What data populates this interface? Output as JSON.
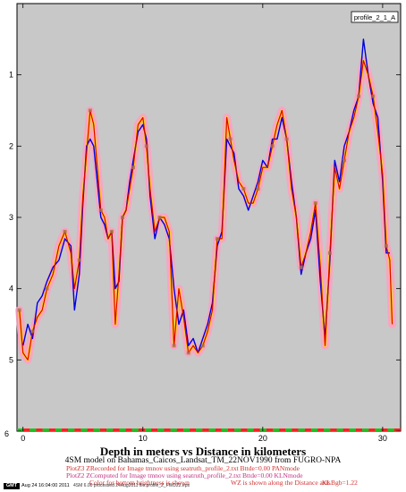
{
  "chart_data": {
    "type": "line",
    "legend_label": "profile_2_1_A",
    "x": {
      "range": [
        -0.5,
        31.5
      ],
      "ticks": [
        0,
        10,
        20,
        30
      ]
    },
    "y": {
      "range": [
        0,
        6
      ],
      "inverted": true,
      "ticks": [
        1,
        2,
        3,
        4,
        5,
        6
      ]
    },
    "grid": false,
    "background_color": "#c8c8c8",
    "series": [
      {
        "role": "recorded",
        "color": "#e00000",
        "halo_color": "#ff9fc3",
        "x": [
          -0.3,
          0,
          0.4,
          0.8,
          1.2,
          1.6,
          2,
          2.5,
          3,
          3.5,
          4,
          4.3,
          4.7,
          5,
          5.3,
          5.6,
          5.9,
          6.2,
          6.5,
          6.8,
          7.1,
          7.4,
          7.7,
          8,
          8.3,
          8.6,
          8.9,
          9.2,
          9.6,
          10,
          10.3,
          10.6,
          11,
          11.4,
          11.8,
          12.2,
          12.6,
          13,
          13.4,
          13.8,
          14.2,
          14.6,
          15,
          15.4,
          15.8,
          16.2,
          16.6,
          17,
          17.3,
          17.6,
          18,
          18.4,
          18.8,
          19.2,
          19.6,
          20,
          20.4,
          20.8,
          21.2,
          21.6,
          22,
          22.4,
          22.8,
          23.2,
          23.6,
          24,
          24.4,
          24.8,
          25.2,
          25.6,
          26,
          26.4,
          26.8,
          27.2,
          27.6,
          28,
          28.4,
          28.8,
          29.2,
          29.6,
          30,
          30.3,
          30.6,
          30.8
        ],
        "y": [
          4.3,
          4.9,
          5.0,
          4.6,
          4.4,
          4.3,
          4.0,
          3.8,
          3.4,
          3.2,
          3.5,
          4.0,
          3.6,
          2.7,
          2.1,
          1.5,
          1.7,
          2.3,
          2.9,
          3.0,
          3.3,
          3.2,
          4.5,
          3.8,
          3.0,
          2.9,
          2.6,
          2.3,
          1.7,
          1.6,
          2.0,
          2.6,
          3.2,
          3.0,
          3.0,
          3.2,
          4.8,
          4.0,
          4.4,
          4.9,
          4.8,
          4.9,
          4.8,
          4.6,
          4.3,
          3.3,
          3.3,
          1.6,
          1.9,
          2.2,
          2.5,
          2.6,
          2.8,
          2.8,
          2.6,
          2.3,
          2.3,
          2.0,
          1.7,
          1.5,
          1.9,
          2.6,
          3.0,
          3.7,
          3.5,
          3.2,
          2.8,
          3.7,
          4.8,
          3.5,
          2.3,
          2.6,
          2.2,
          1.8,
          1.6,
          1.3,
          0.8,
          1.0,
          1.3,
          1.8,
          2.4,
          3.4,
          3.6,
          4.5
        ],
        "fill_color": "#f7d21a",
        "marker_color": "#a6704a"
      },
      {
        "role": "computed",
        "color": "#0000e0",
        "x": [
          0,
          0.4,
          0.8,
          1.2,
          1.6,
          2,
          2.5,
          3,
          3.5,
          4,
          4.3,
          4.7,
          5,
          5.3,
          5.6,
          5.9,
          6.2,
          6.5,
          6.8,
          7.1,
          7.4,
          7.7,
          8,
          8.3,
          8.6,
          8.9,
          9.2,
          9.6,
          10,
          10.3,
          10.6,
          11,
          11.4,
          11.8,
          12.2,
          12.6,
          13,
          13.4,
          13.8,
          14.2,
          14.6,
          15,
          15.4,
          15.8,
          16.2,
          16.6,
          17,
          17.3,
          17.6,
          18,
          18.4,
          18.8,
          19.2,
          19.6,
          20,
          20.4,
          20.8,
          21.2,
          21.6,
          22,
          22.4,
          22.8,
          23.2,
          23.6,
          24,
          24.4,
          24.8,
          25.2,
          25.6,
          26,
          26.4,
          26.8,
          27.2,
          27.6,
          28,
          28.4,
          28.8,
          29.2,
          29.6,
          30,
          30.3,
          30.6
        ],
        "y": [
          4.8,
          4.5,
          4.7,
          4.2,
          4.1,
          3.9,
          3.7,
          3.6,
          3.3,
          3.4,
          4.3,
          3.8,
          2.8,
          2.0,
          1.9,
          2.0,
          2.5,
          3.0,
          3.1,
          3.3,
          3.2,
          4.0,
          3.9,
          3.0,
          2.9,
          2.5,
          2.2,
          1.8,
          1.7,
          1.9,
          2.7,
          3.3,
          3.0,
          3.1,
          3.3,
          4.0,
          4.5,
          4.3,
          4.8,
          4.7,
          4.9,
          4.7,
          4.5,
          4.2,
          3.4,
          3.2,
          1.9,
          2.0,
          2.1,
          2.6,
          2.7,
          2.9,
          2.7,
          2.5,
          2.2,
          2.3,
          1.9,
          1.9,
          1.6,
          1.9,
          2.5,
          3.0,
          3.8,
          3.5,
          3.3,
          2.9,
          3.9,
          4.7,
          3.6,
          2.2,
          2.5,
          2.0,
          1.8,
          1.5,
          1.3,
          0.5,
          1.0,
          1.4,
          1.6,
          2.5,
          3.5,
          3.5
        ]
      }
    ],
    "bottom_strip": {
      "y": 6,
      "colors": [
        "#20c020",
        "#ff2020"
      ]
    },
    "corner_label": "6",
    "xlabel": "Depth in meters vs Distance in kilometers",
    "subtitle": "4SM model on Bahamas_Caicos_Landsat_TM_22NOV1990 from FUGRO-NPA",
    "notes": [
      "PlotZ3 ZRecorded  for Image tmnov using seatruth_profile_2.txt Bttde=0.00 PANmode",
      "PlotZ2 ZComputed  for Image tmnov using seatruth_profile_2.txt Bttde=0.00 KLNmode",
      "Color for bottom brightness is shown",
      "WZ is shown along the Distance axis",
      "KLBgb=1.22"
    ],
    "footer": {
      "logo": "GMT",
      "stamp": "Aug 24 16:04:00 2011",
      "stamp2": "4SM 6.00 processed 24Aug2011 file profile_2_FWD22.eps"
    }
  }
}
